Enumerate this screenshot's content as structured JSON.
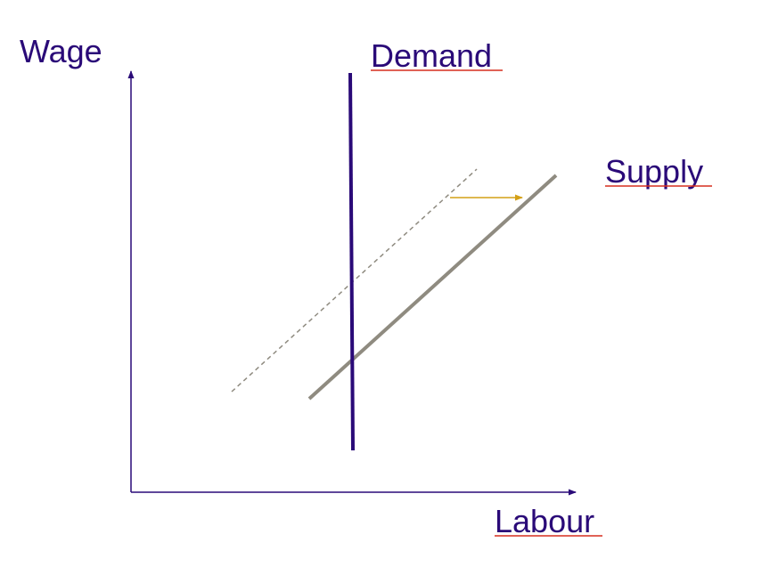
{
  "colors": {
    "background": "#ffffff",
    "text": "#2a0a78",
    "axis": "#2a0a78",
    "demand_line": "#2a0a78",
    "supply_line": "#8f8b80",
    "supply_old_dashed": "#8f8b80",
    "shift_arrow": "#d4a017",
    "label_underline": "#d62e1f"
  },
  "labels": {
    "y_axis": "Wage",
    "x_axis": "Labour",
    "demand": "Demand",
    "supply": "Supply"
  },
  "icons": {
    "shift_arrow": "right-arrow-icon"
  }
}
